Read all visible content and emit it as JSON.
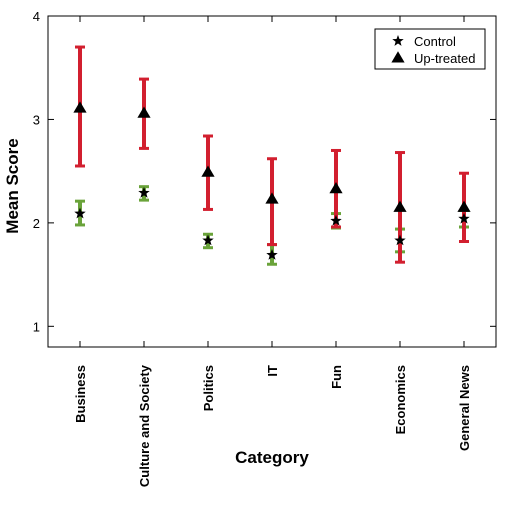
{
  "chart_data": {
    "type": "scatter",
    "categories": [
      "Business",
      "Culture and Society",
      "Politics",
      "IT",
      "Fun",
      "Economics",
      "General News"
    ],
    "ylabel": "Mean Score",
    "xlabel": "Category",
    "ylim": [
      0.8,
      4.0
    ],
    "yticks": [
      "1",
      "2",
      "3",
      "4"
    ],
    "grid": false,
    "legend_position": "top-right",
    "series": [
      {
        "name": "Control",
        "marker": "star",
        "error_color": "#6aa33a",
        "values": [
          2.09,
          2.29,
          1.83,
          1.69,
          2.02,
          1.83,
          2.04
        ],
        "lower": [
          1.98,
          2.22,
          1.76,
          1.6,
          1.95,
          1.72,
          1.96
        ],
        "upper": [
          2.21,
          2.35,
          1.89,
          1.79,
          2.09,
          1.94,
          2.12
        ]
      },
      {
        "name": "Up-treated",
        "marker": "triangle",
        "error_color": "#d21f2f",
        "values": [
          3.11,
          3.06,
          2.49,
          2.23,
          2.33,
          2.15,
          2.15
        ],
        "lower": [
          2.55,
          2.72,
          2.13,
          1.79,
          1.96,
          1.62,
          1.82
        ],
        "upper": [
          3.7,
          3.39,
          2.84,
          2.62,
          2.7,
          2.68,
          2.48
        ]
      }
    ]
  }
}
